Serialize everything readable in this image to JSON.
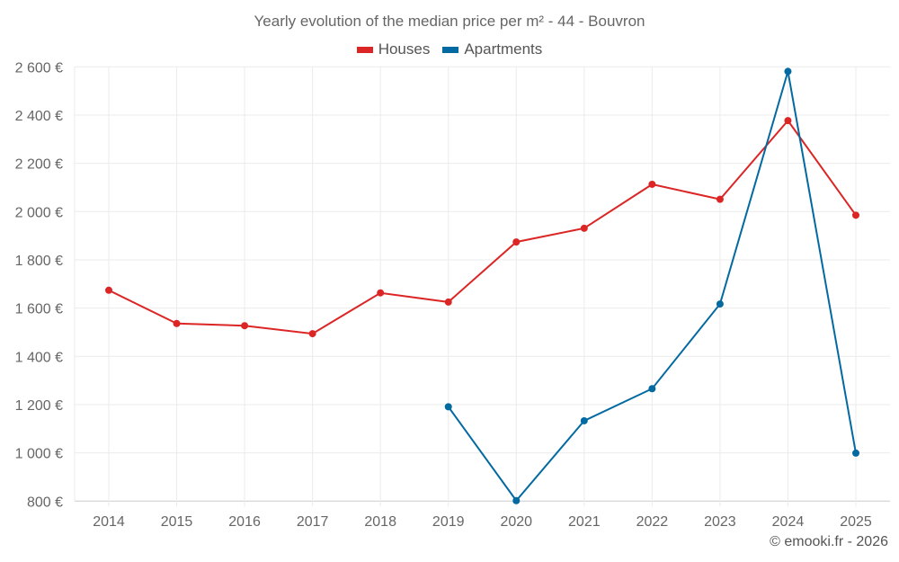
{
  "chart_data": {
    "type": "line",
    "title": "Yearly evolution of the median price per m² - 44 - Bouvron",
    "xlabel": "",
    "ylabel": "",
    "categories": [
      "2014",
      "2015",
      "2016",
      "2017",
      "2018",
      "2019",
      "2020",
      "2021",
      "2022",
      "2023",
      "2024",
      "2025"
    ],
    "ylim": [
      800,
      2600
    ],
    "yticks": [
      800,
      1000,
      1200,
      1400,
      1600,
      1800,
      2000,
      2200,
      2400,
      2600
    ],
    "ytick_labels": [
      "800 €",
      "1 000 €",
      "1 200 €",
      "1 400 €",
      "1 600 €",
      "1 800 €",
      "2 000 €",
      "2 200 €",
      "2 400 €",
      "2 600 €"
    ],
    "grid": true,
    "legend_position": "top-center",
    "series": [
      {
        "name": "Houses",
        "color": "#dc2626",
        "values": [
          1674,
          1536,
          1527,
          1494,
          1663,
          1625,
          1874,
          1931,
          2113,
          2051,
          2377,
          1985
        ]
      },
      {
        "name": "Apartments",
        "color": "#0369a1",
        "values": [
          null,
          null,
          null,
          null,
          null,
          1191,
          802,
          1133,
          1266,
          1617,
          2581,
          999
        ]
      }
    ],
    "credit": "© emooki.fr - 2026"
  }
}
